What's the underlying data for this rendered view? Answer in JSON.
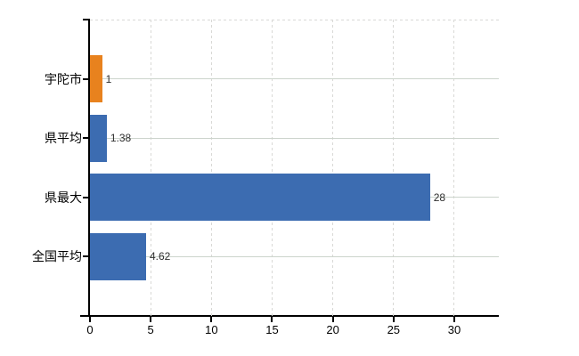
{
  "chart_data": {
    "type": "bar",
    "orientation": "horizontal",
    "title": "",
    "xlabel": "",
    "ylabel": "",
    "categories": [
      "宇陀市",
      "県平均",
      "県最大",
      "全国平均"
    ],
    "values": [
      1,
      1.38,
      28,
      4.62
    ],
    "value_labels": [
      "1",
      "1.38",
      "28",
      "4.62"
    ],
    "bar_colors": [
      "#e8821e",
      "#3c6cb1",
      "#3c6cb1",
      "#3c6cb1"
    ],
    "x_ticks": [
      0,
      5,
      10,
      15,
      20,
      25,
      30
    ],
    "x_tick_labels": [
      "0",
      "5",
      "10",
      "15",
      "20",
      "25",
      "30"
    ],
    "xlim": [
      0,
      33.7
    ],
    "grid": {
      "vertical": "dashed",
      "horizontal": "solid",
      "top_border": "dashed"
    },
    "legend_position": "none"
  },
  "colors": {
    "background": "#ffffff",
    "axis": "#000000",
    "grid_dashed": "#d9d9d6",
    "grid_solid": "#ccd4cc",
    "bar_orange": "#e8821e",
    "bar_blue": "#3c6cb1",
    "value_label_text": "#2e2e2e",
    "tick_label_text": "#000000"
  }
}
